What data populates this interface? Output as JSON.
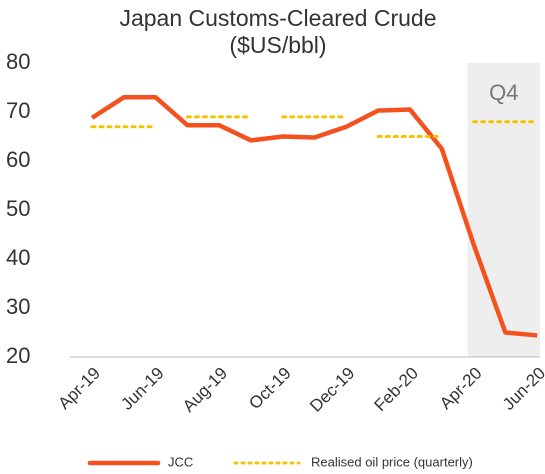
{
  "chart_data": {
    "type": "line",
    "title": "Japan Customs-Cleared Crude",
    "subtitle": "($US/bbl)",
    "categories": [
      "Apr-19",
      null,
      "Jun-19",
      null,
      "Aug-19",
      null,
      "Oct-19",
      null,
      "Dec-19",
      null,
      "Feb-20",
      null,
      "Apr-20",
      null,
      "Jun-20"
    ],
    "series": [
      {
        "name": "JCC",
        "color": "#f4511e",
        "style": "solid",
        "values": [
          68.8,
          73,
          73,
          67.3,
          67.3,
          64.2,
          65,
          64.8,
          67,
          70.3,
          70.5,
          62.5,
          43,
          25,
          24.4
        ]
      },
      {
        "name": "Realised oil price (quarterly)",
        "color": "#f5c400",
        "style": "dotted",
        "values": [
          67,
          67,
          67,
          69,
          69,
          69,
          69,
          69,
          69,
          65,
          65,
          65,
          68,
          68,
          68
        ]
      }
    ],
    "annotation": "Q4",
    "ylim": [
      20,
      80
    ],
    "yticks": [
      20,
      30,
      40,
      50,
      60,
      70,
      80
    ],
    "grid": false,
    "legend": "bottom"
  }
}
